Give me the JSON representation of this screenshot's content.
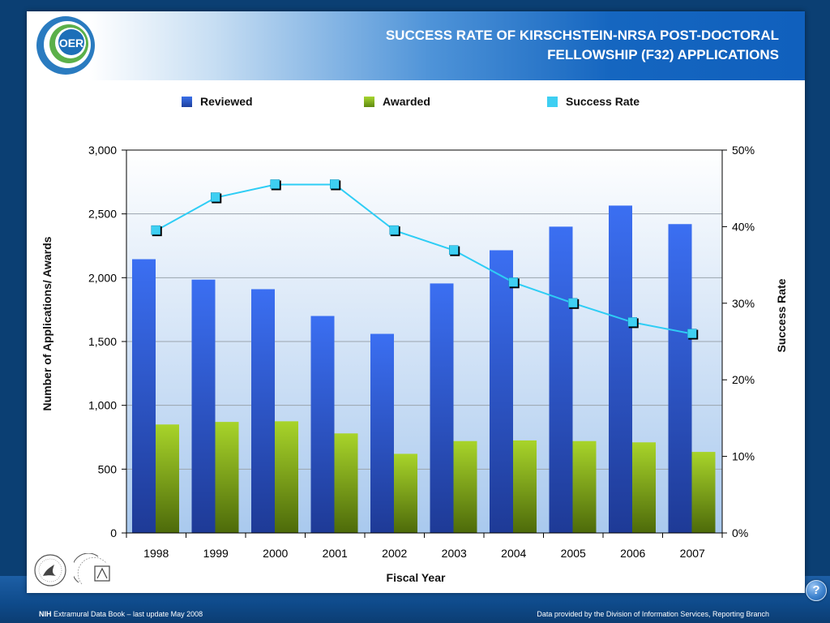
{
  "header": {
    "title_line1": "SUCCESS RATE OF KIRSCHSTEIN-NRSA POST-DOCTORAL",
    "title_line2": "FELLOWSHIP (F32) APPLICATIONS",
    "logo_text": "OER"
  },
  "chart_data": {
    "type": "bar",
    "title": "SUCCESS RATE OF KIRSCHSTEIN-NRSA POST-DOCTORAL FELLOWSHIP (F32) APPLICATIONS",
    "xlabel": "Fiscal Year",
    "ylabel": "Number of Applications/ Awards",
    "y2label": "Success Rate",
    "categories": [
      "1998",
      "1999",
      "2000",
      "2001",
      "2002",
      "2003",
      "2004",
      "2005",
      "2006",
      "2007"
    ],
    "ylim": [
      0,
      3000
    ],
    "y_ticks": [
      0,
      500,
      1000,
      1500,
      2000,
      2500,
      3000
    ],
    "y_tick_labels": [
      "0",
      "500",
      "1,000",
      "1,500",
      "2,000",
      "2,500",
      "3,000"
    ],
    "y2lim": [
      0,
      50
    ],
    "y2_ticks": [
      0,
      10,
      20,
      30,
      40,
      50
    ],
    "y2_tick_labels": [
      "0%",
      "10%",
      "20%",
      "30%",
      "40%",
      "50%"
    ],
    "grid": true,
    "legend_position": "top",
    "series": [
      {
        "name": "Reviewed",
        "type": "bar",
        "axis": "left",
        "color": "#2f66e8",
        "values": [
          2145,
          1985,
          1910,
          1700,
          1560,
          1955,
          2215,
          2400,
          2565,
          2420
        ]
      },
      {
        "name": "Awarded",
        "type": "bar",
        "axis": "left",
        "color": "#8fc21f",
        "values": [
          850,
          870,
          875,
          780,
          620,
          720,
          725,
          720,
          710,
          635
        ]
      },
      {
        "name": "Success Rate",
        "type": "line",
        "axis": "right",
        "color": "#2ecdf5",
        "values": [
          39.5,
          43.8,
          45.5,
          45.5,
          39.5,
          36.9,
          32.7,
          30.0,
          27.5,
          26.0
        ]
      }
    ]
  },
  "footer": {
    "left_bold": "NIH",
    "left_text": " Extramural Data Book – last update May 2008",
    "right_text": "Data provided by the Division of Information Services, Reporting Branch"
  },
  "help": {
    "label": "?"
  }
}
